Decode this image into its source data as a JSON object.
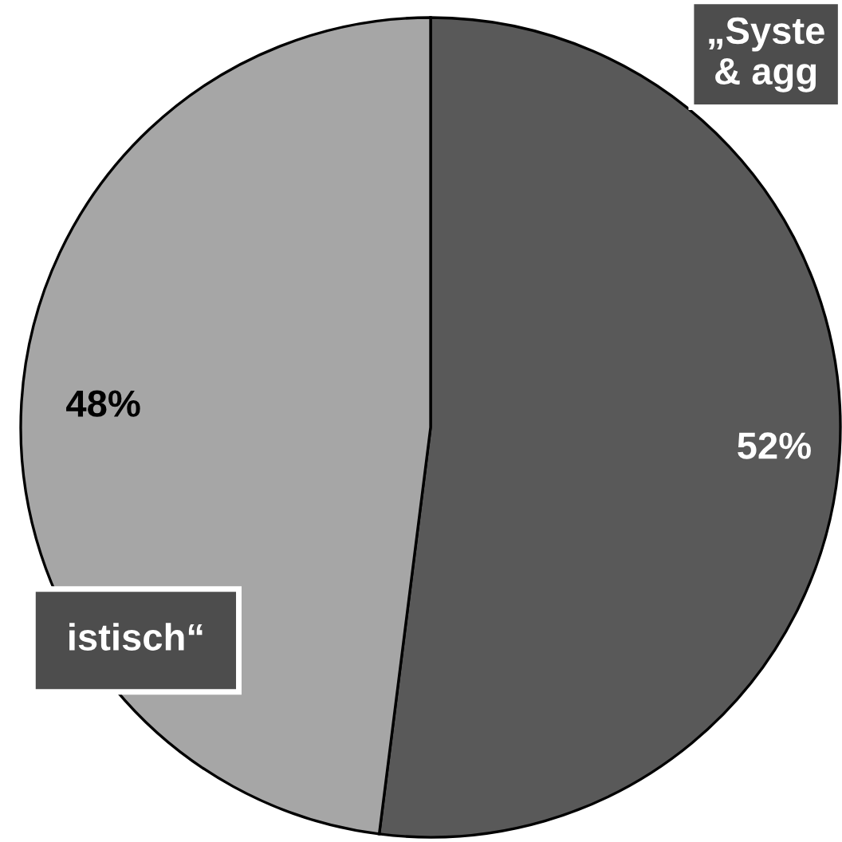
{
  "chart_data": {
    "type": "pie",
    "categories": [
      "„Syste\n& agg",
      "istisch“"
    ],
    "values": [
      52,
      48
    ],
    "colors": [
      "#595959",
      "#a6a6a6"
    ],
    "value_labels": [
      "52%",
      "48%"
    ]
  }
}
